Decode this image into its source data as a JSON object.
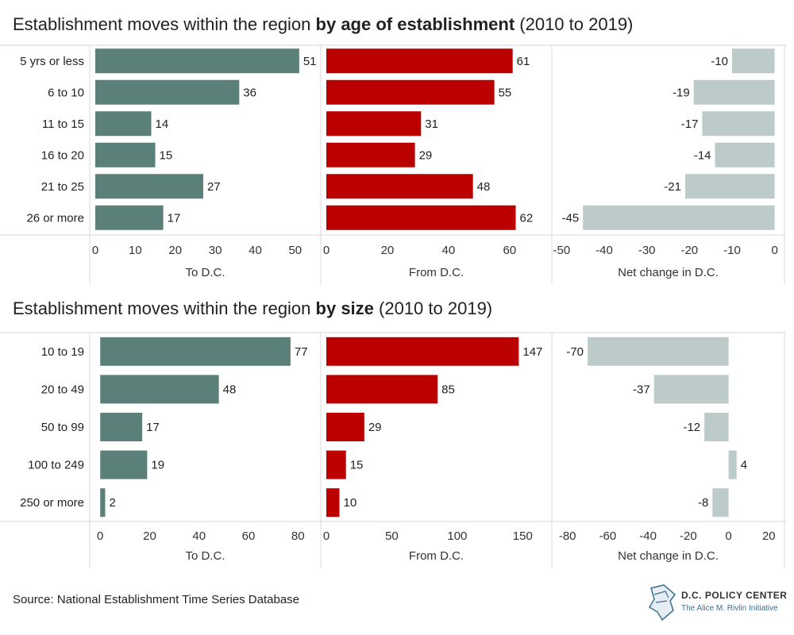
{
  "titles": [
    {
      "prefix": "Establishment moves within the region ",
      "bold": "by age of establishment",
      "suffix": " (2010 to 2019)"
    },
    {
      "prefix": "Establishment moves within the region ",
      "bold": "by size",
      "suffix": " (2010 to 2019)"
    }
  ],
  "source": "Source: National Establishment Time Series Database",
  "logo": {
    "name": "D.C. POLICY CENTER",
    "tagline": "The Alice M. Rivlin Initiative"
  },
  "colors": {
    "to": "#5a8079",
    "from": "#bb0000",
    "net": "#bccbc9",
    "grid": "#d9d9d9"
  },
  "chart_data": [
    {
      "type": "bar",
      "title": "Establishment moves within the region by age of establishment (2010 to 2019)",
      "categories": [
        "5 yrs or less",
        "6 to 10",
        "11 to 15",
        "16 to 20",
        "21 to 25",
        "26 or more"
      ],
      "panels": [
        {
          "xlabel": "To D.C.",
          "values": [
            51,
            36,
            14,
            15,
            27,
            17
          ],
          "xlim": [
            0,
            55
          ],
          "ticks": [
            0,
            10,
            20,
            30,
            40,
            50
          ],
          "color": "to"
        },
        {
          "xlabel": "From D.C.",
          "values": [
            61,
            55,
            31,
            29,
            48,
            62
          ],
          "xlim": [
            0,
            72
          ],
          "ticks": [
            0,
            20,
            40,
            60
          ],
          "color": "from"
        },
        {
          "xlabel": "Net change in D.C.",
          "values": [
            -10,
            -19,
            -17,
            -14,
            -21,
            -45
          ],
          "xlim": [
            -51,
            1
          ],
          "ticks": [
            -50,
            -40,
            -30,
            -20,
            -10,
            0
          ],
          "color": "net"
        }
      ]
    },
    {
      "type": "bar",
      "title": "Establishment moves within the region by size (2010 to 2019)",
      "categories": [
        "10 to 19",
        "20 to 49",
        "50 to 99",
        "100 to 249",
        "250 or more"
      ],
      "panels": [
        {
          "xlabel": "To D.C.",
          "values": [
            77,
            48,
            17,
            19,
            2
          ],
          "xlim": [
            -2,
            87
          ],
          "ticks": [
            0,
            20,
            40,
            60,
            80
          ],
          "color": "to"
        },
        {
          "xlabel": "From D.C.",
          "values": [
            147,
            85,
            29,
            15,
            10
          ],
          "xlim": [
            0,
            168
          ],
          "ticks": [
            0,
            50,
            100,
            150
          ],
          "color": "from"
        },
        {
          "xlabel": "Net change in D.C.",
          "values": [
            -70,
            -37,
            -12,
            4,
            -8
          ],
          "xlim": [
            -85,
            25
          ],
          "ticks": [
            -80,
            -60,
            -40,
            -20,
            0,
            20
          ],
          "color": "net"
        }
      ]
    }
  ]
}
